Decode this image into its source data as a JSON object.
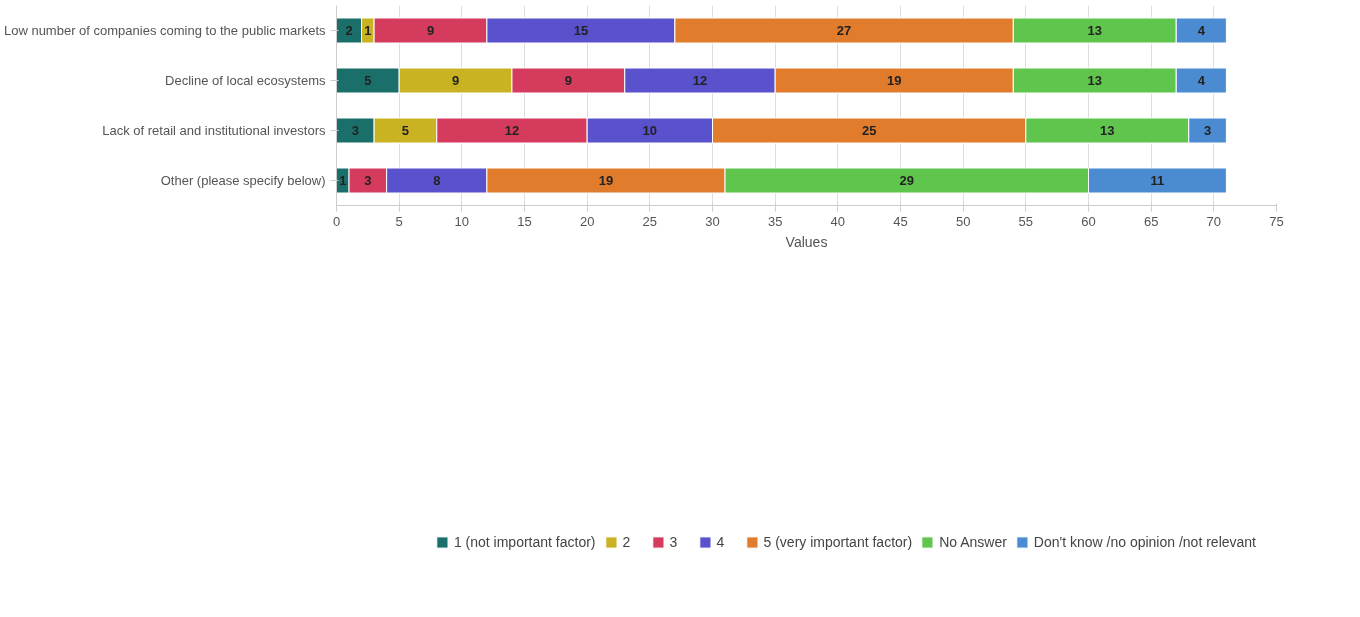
{
  "chart_data": {
    "type": "bar",
    "orientation": "horizontal",
    "stacked": true,
    "categories": [
      "Low number of companies coming to the public markets",
      "Decline of local ecosystems",
      "Lack of retail and institutional investors",
      "Other (please specify below)"
    ],
    "series": [
      {
        "name": "1 (not important factor)",
        "color": "#1b6f6b",
        "values": [
          2,
          5,
          3,
          1
        ]
      },
      {
        "name": "2",
        "color": "#c9b322",
        "values": [
          1,
          9,
          5,
          null
        ]
      },
      {
        "name": "3",
        "color": "#d43b5c",
        "values": [
          9,
          9,
          12,
          3
        ]
      },
      {
        "name": "4",
        "color": "#5a52cc",
        "values": [
          15,
          12,
          10,
          8
        ]
      },
      {
        "name": "5 (very important factor)",
        "color": "#e07c2c",
        "values": [
          27,
          19,
          25,
          19
        ]
      },
      {
        "name": "No Answer",
        "color": "#5fc54c",
        "values": [
          13,
          13,
          13,
          29
        ]
      },
      {
        "name": "Don't know /no opinion /not relevant",
        "color": "#4a8bd1",
        "values": [
          4,
          4,
          3,
          11
        ]
      }
    ],
    "xlabel": "Values",
    "xlim": [
      0,
      75
    ],
    "xticks": [
      0,
      5,
      10,
      15,
      20,
      25,
      30,
      35,
      40,
      45,
      50,
      55,
      60,
      65,
      70,
      75
    ],
    "grid": "x",
    "legend": "bottom",
    "data_labels": true
  }
}
